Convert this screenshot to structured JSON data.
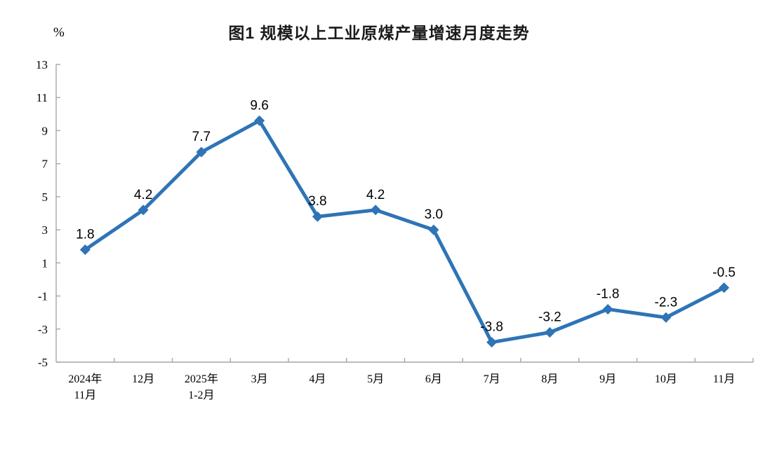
{
  "chart_data": {
    "type": "line",
    "title": "图1  规模以上工业原煤产量增速月度走势",
    "ylabel": "%",
    "categories": [
      [
        "2024年",
        "11月"
      ],
      [
        "12月"
      ],
      [
        "2025年",
        "1-2月"
      ],
      [
        "3月"
      ],
      [
        "4月"
      ],
      [
        "5月"
      ],
      [
        "6月"
      ],
      [
        "7月"
      ],
      [
        "8月"
      ],
      [
        "9月"
      ],
      [
        "10月"
      ],
      [
        "11月"
      ]
    ],
    "values": [
      1.8,
      4.2,
      7.7,
      9.6,
      3.8,
      4.2,
      3.0,
      -3.8,
      -3.2,
      -1.8,
      -2.3,
      -0.5
    ],
    "point_labels": [
      "1.8",
      "4.2",
      "7.7",
      "9.6",
      "3.8",
      "4.2",
      "3.0",
      "-3.8",
      "-3.2",
      "-1.8",
      "-2.3",
      "-0.5"
    ],
    "ylim": [
      -5,
      13
    ],
    "ytick_step": 2,
    "ytick_labels": [
      "13",
      "11",
      "9",
      "7",
      "5",
      "3",
      "1",
      "-1",
      "-3",
      "-5"
    ],
    "grid": false,
    "legend": "none",
    "marker": "diamond",
    "line_color": "#2E74B6",
    "axis_color": "#A6A6A6",
    "text_color": "#000000"
  }
}
